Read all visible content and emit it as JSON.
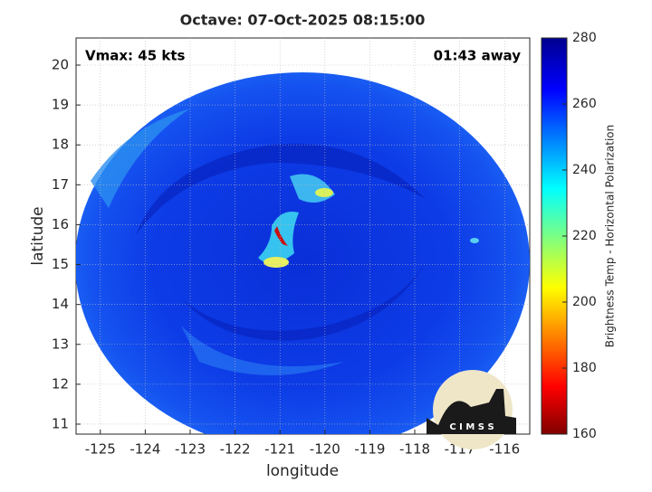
{
  "title": "Octave: 07-Oct-2025 08:15:00",
  "annotations": {
    "vmax": "Vmax: 45 kts",
    "time_away": "01:43 away"
  },
  "x_axis": {
    "label": "longitude",
    "lim": [
      -125.54,
      -115.44
    ],
    "ticks": [
      -125,
      -124,
      -123,
      -122,
      -121,
      -120,
      -119,
      -118,
      -117,
      -116
    ]
  },
  "y_axis": {
    "label": "latitude",
    "lim": [
      10.75,
      20.68
    ],
    "ticks": [
      11,
      12,
      13,
      14,
      15,
      16,
      17,
      18,
      19,
      20
    ]
  },
  "colorbar": {
    "label": "Brightness Temp - Horizontal Polarization",
    "lim": [
      160,
      280
    ],
    "ticks": [
      160,
      180,
      200,
      220,
      240,
      260,
      280
    ]
  },
  "logo": "C I M S S"
}
